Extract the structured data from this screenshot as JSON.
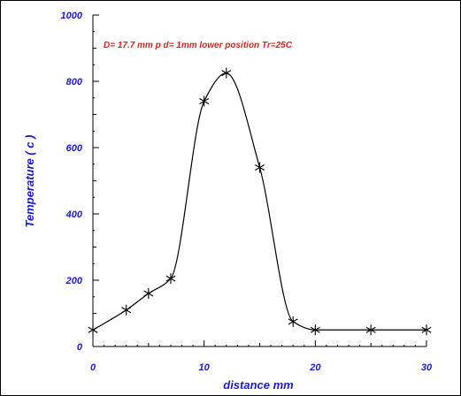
{
  "chart_data": {
    "type": "line",
    "title": "",
    "annotation": "D= 17.7 mm  p d= 1mm  lower position  Tr=25C",
    "xlabel": "distance  mm",
    "ylabel": "Temperature ( c )",
    "xlim": [
      0,
      30
    ],
    "ylim": [
      0,
      1000
    ],
    "xticks": [
      "0",
      "10",
      "20",
      "30"
    ],
    "yticks": [
      "0",
      "200",
      "400",
      "600",
      "800",
      "1000"
    ],
    "grid": false,
    "marker": "asterisk",
    "series": [
      {
        "x": [
          0,
          3,
          5,
          7,
          10,
          12,
          15,
          18,
          20,
          25,
          30
        ],
        "y": [
          50,
          110,
          160,
          205,
          740,
          825,
          540,
          75,
          50,
          50,
          50
        ]
      }
    ],
    "colors": {
      "text": "#1a1adc",
      "annotation": "#e02020",
      "line": "#000000"
    }
  }
}
